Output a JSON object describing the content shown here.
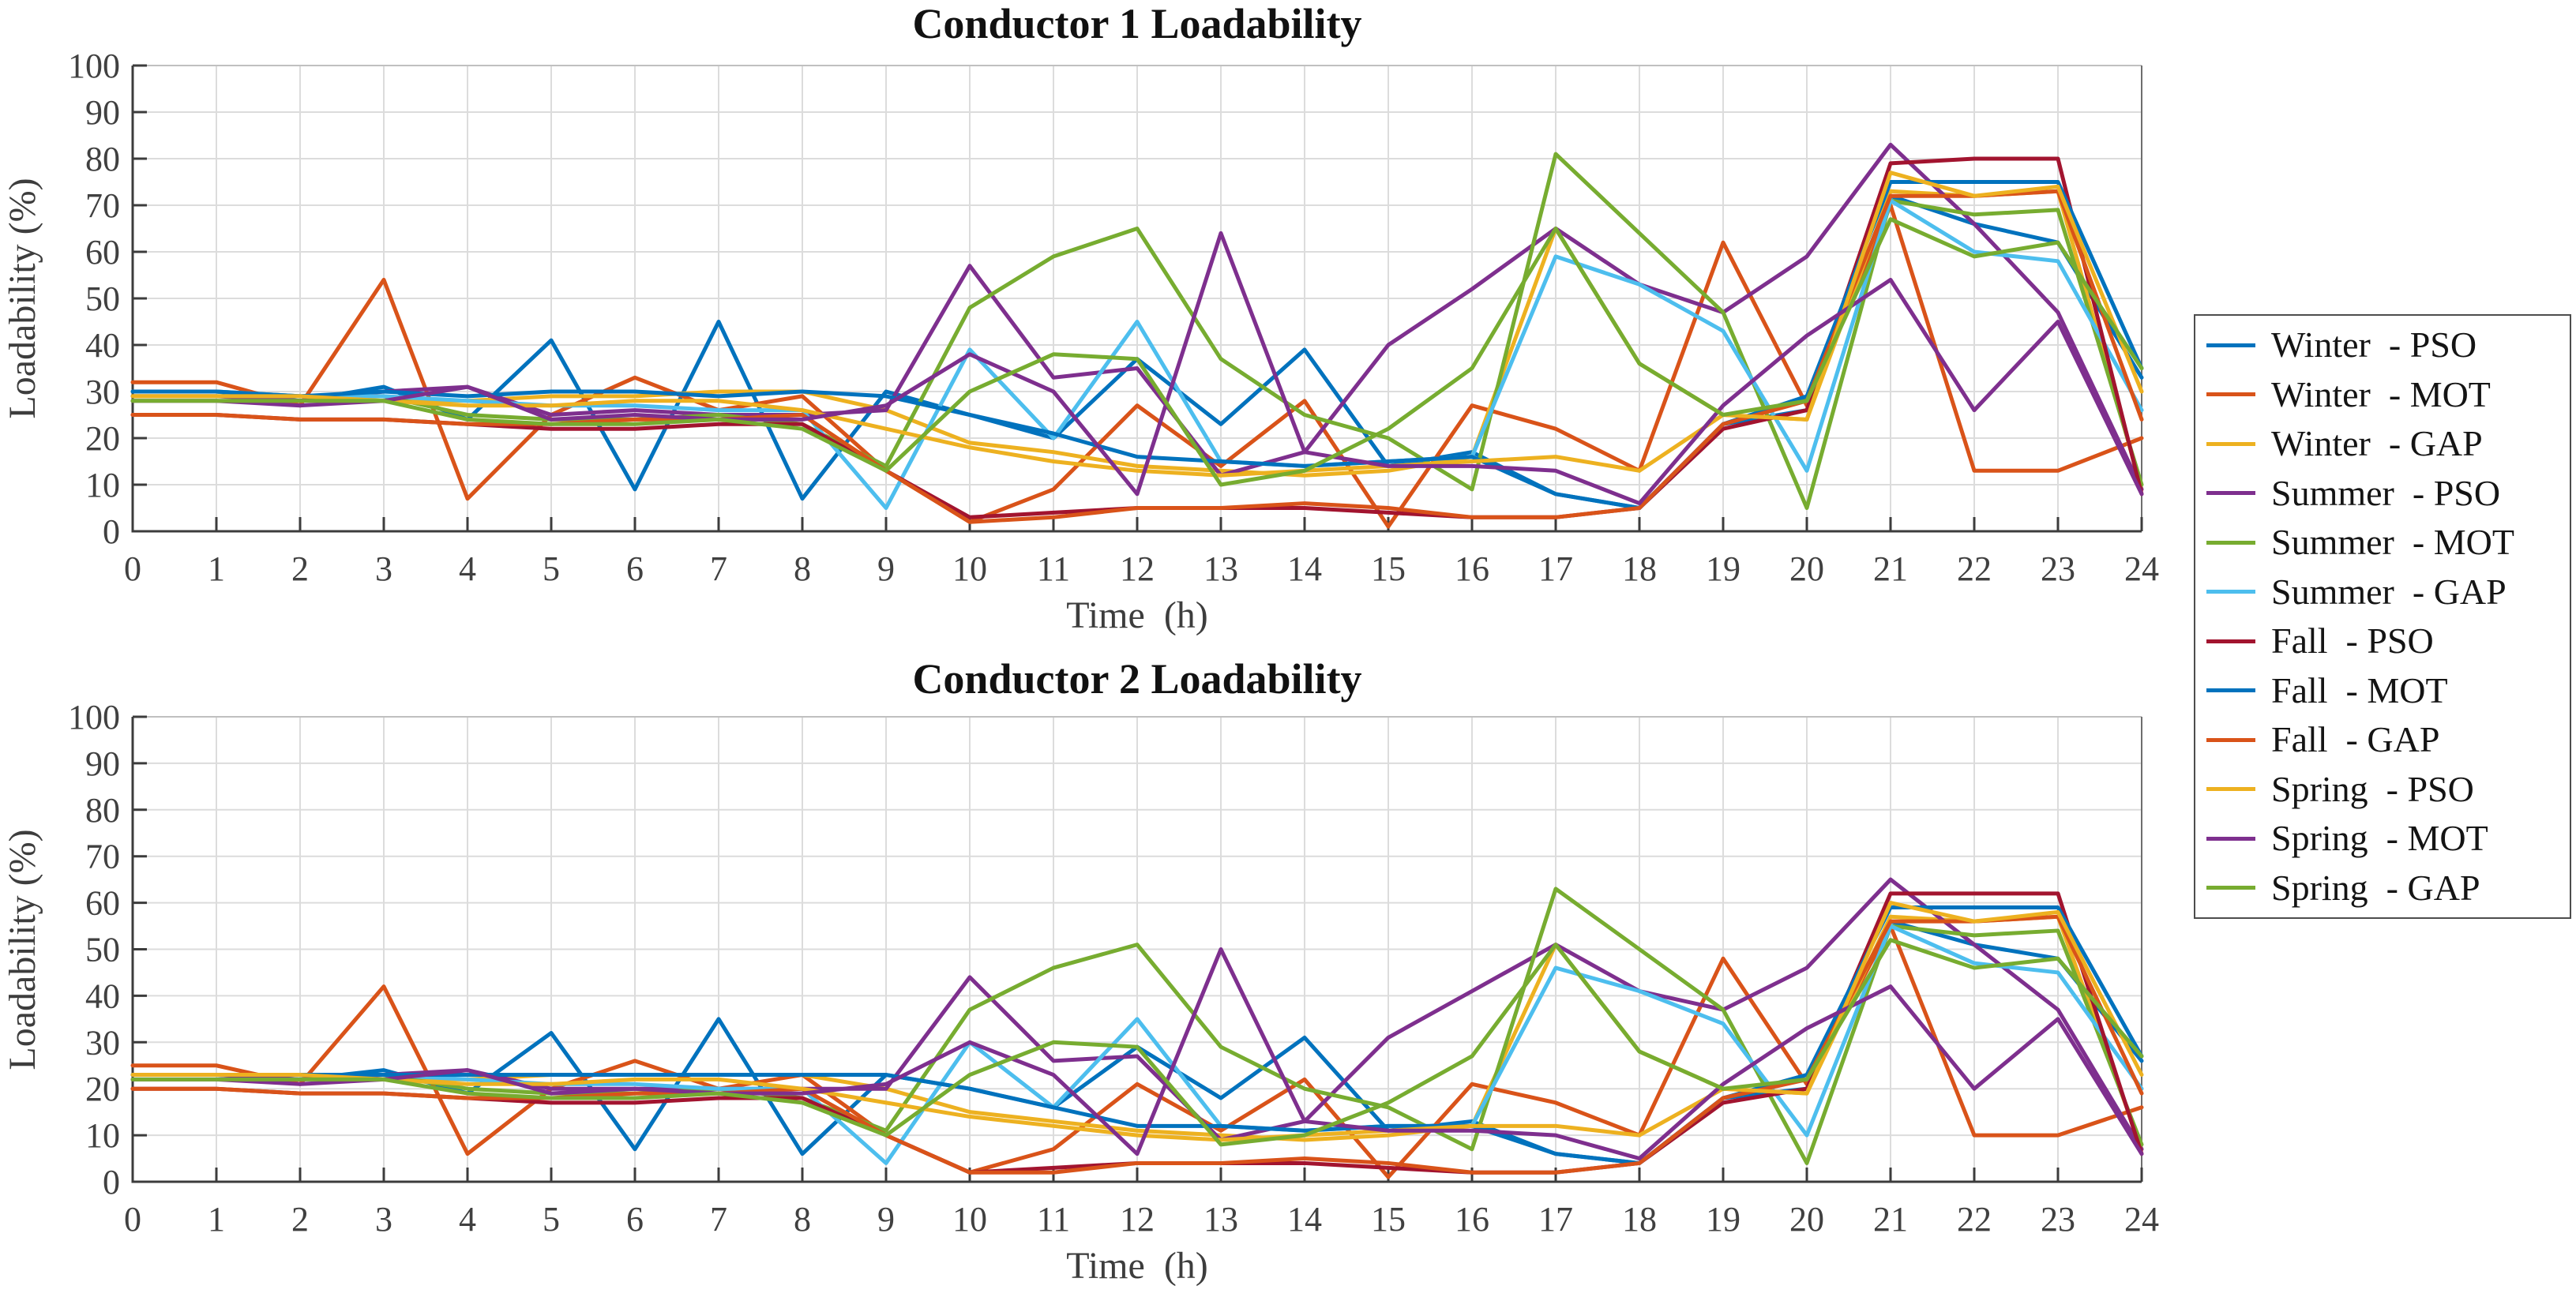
{
  "figure": {
    "background": "#ffffff"
  },
  "legend": {
    "position": "right",
    "entries": [
      {
        "label": "Winter  - PSO",
        "color": "#0072BD"
      },
      {
        "label": "Winter  - MOT",
        "color": "#D95319"
      },
      {
        "label": "Winter  - GAP",
        "color": "#EDB120"
      },
      {
        "label": "Summer  - PSO",
        "color": "#7E2F8E"
      },
      {
        "label": "Summer  - MOT",
        "color": "#77AC30"
      },
      {
        "label": "Summer  - GAP",
        "color": "#4DBEEE"
      },
      {
        "label": "Fall  - PSO",
        "color": "#A2142F"
      },
      {
        "label": "Fall  - MOT",
        "color": "#0072BD"
      },
      {
        "label": "Fall  - GAP",
        "color": "#D95319"
      },
      {
        "label": "Spring  - PSO",
        "color": "#EDB120"
      },
      {
        "label": "Spring  - MOT",
        "color": "#7E2F8E"
      },
      {
        "label": "Spring  - GAP",
        "color": "#77AC30"
      }
    ]
  },
  "chart_data": [
    {
      "type": "line",
      "title": "Conductor 1 Loadability",
      "xlabel": "Time  (h)",
      "ylabel": "Loadability (%)",
      "xlim": [
        0,
        24
      ],
      "ylim": [
        0,
        100
      ],
      "xticks": [
        0,
        1,
        2,
        3,
        4,
        5,
        6,
        7,
        8,
        9,
        10,
        11,
        12,
        13,
        14,
        15,
        16,
        17,
        18,
        19,
        20,
        21,
        22,
        23,
        24
      ],
      "yticks": [
        0,
        10,
        20,
        30,
        40,
        50,
        60,
        70,
        80,
        90,
        100
      ],
      "grid": true,
      "x": [
        0,
        1,
        2,
        3,
        4,
        5,
        6,
        7,
        8,
        9,
        10,
        11,
        12,
        13,
        14,
        15,
        16,
        17,
        18,
        19,
        20,
        21,
        22,
        23,
        24
      ],
      "series": [
        {
          "name": "winter-pso",
          "label": "Winter  - PSO",
          "color": "#0072BD",
          "values": [
            30,
            30,
            28,
            31,
            24,
            41,
            9,
            45,
            7,
            30,
            25,
            20,
            37,
            23,
            39,
            14,
            17,
            8,
            5,
            23,
            26,
            72,
            66,
            62,
            33
          ]
        },
        {
          "name": "winter-mot",
          "label": "Winter  - MOT",
          "color": "#D95319",
          "values": [
            32,
            32,
            27,
            54,
            7,
            25,
            33,
            26,
            29,
            13,
            2,
            9,
            27,
            14,
            28,
            1,
            27,
            22,
            13,
            62,
            27,
            70,
            13,
            13,
            20
          ]
        },
        {
          "name": "winter-gap",
          "label": "Winter  - GAP",
          "color": "#EDB120",
          "values": [
            30,
            30,
            29,
            28,
            28,
            29,
            29,
            30,
            30,
            26,
            19,
            17,
            14,
            13,
            12,
            13,
            16,
            65,
            36,
            25,
            24,
            73,
            72,
            73,
            9
          ]
        },
        {
          "name": "summer-pso",
          "label": "Summer  - PSO",
          "color": "#7E2F8E",
          "values": [
            29,
            29,
            28,
            30,
            31,
            25,
            26,
            25,
            25,
            26,
            57,
            33,
            35,
            12,
            17,
            40,
            52,
            65,
            53,
            47,
            59,
            83,
            66,
            47,
            9
          ]
        },
        {
          "name": "summer-mot",
          "label": "Summer  - MOT",
          "color": "#77AC30",
          "values": [
            29,
            29,
            29,
            29,
            25,
            24,
            24,
            25,
            23,
            14,
            48,
            59,
            65,
            37,
            25,
            20,
            9,
            81,
            64,
            47,
            5,
            71,
            68,
            69,
            10
          ]
        },
        {
          "name": "summer-gap",
          "label": "Summer  - GAP",
          "color": "#4DBEEE",
          "values": [
            30,
            30,
            29,
            29,
            28,
            27,
            27,
            26,
            26,
            5,
            39,
            20,
            45,
            15,
            14,
            15,
            16,
            59,
            53,
            43,
            13,
            71,
            60,
            58,
            26
          ]
        },
        {
          "name": "fall-pso",
          "label": "Fall  - PSO",
          "color": "#A2142F",
          "values": [
            25,
            25,
            24,
            24,
            23,
            22,
            22,
            23,
            23,
            13,
            3,
            4,
            5,
            5,
            5,
            4,
            3,
            3,
            5,
            22,
            26,
            79,
            80,
            80,
            8
          ]
        },
        {
          "name": "fall-mot",
          "label": "Fall  - MOT",
          "color": "#0072BD",
          "values": [
            30,
            30,
            29,
            30,
            29,
            30,
            30,
            29,
            30,
            29,
            25,
            21,
            16,
            15,
            14,
            15,
            16,
            8,
            5,
            23,
            29,
            75,
            75,
            75,
            35
          ]
        },
        {
          "name": "fall-gap",
          "label": "Fall  - GAP",
          "color": "#D95319",
          "values": [
            25,
            25,
            24,
            24,
            23,
            23,
            24,
            24,
            25,
            13,
            2,
            3,
            5,
            5,
            6,
            5,
            3,
            3,
            5,
            23,
            28,
            72,
            72,
            73,
            24
          ]
        },
        {
          "name": "spring-pso",
          "label": "Spring  - PSO",
          "color": "#EDB120",
          "values": [
            29,
            29,
            29,
            28,
            27,
            27,
            28,
            28,
            26,
            22,
            18,
            15,
            13,
            12,
            13,
            14,
            15,
            16,
            13,
            25,
            24,
            77,
            72,
            74,
            30
          ]
        },
        {
          "name": "spring-mot",
          "label": "Spring  - MOT",
          "color": "#7E2F8E",
          "values": [
            28,
            28,
            27,
            28,
            31,
            24,
            25,
            24,
            24,
            27,
            38,
            30,
            8,
            64,
            17,
            14,
            14,
            13,
            6,
            27,
            42,
            54,
            26,
            45,
            8
          ]
        },
        {
          "name": "spring-gap",
          "label": "Spring  - GAP",
          "color": "#77AC30",
          "values": [
            28,
            28,
            28,
            28,
            24,
            23,
            23,
            24,
            22,
            13,
            30,
            38,
            37,
            10,
            13,
            22,
            35,
            65,
            36,
            25,
            28,
            67,
            59,
            62,
            35
          ]
        }
      ]
    },
    {
      "type": "line",
      "title": "Conductor 2 Loadability",
      "xlabel": "Time  (h)",
      "ylabel": "Loadability (%)",
      "xlim": [
        0,
        24
      ],
      "ylim": [
        0,
        100
      ],
      "xticks": [
        0,
        1,
        2,
        3,
        4,
        5,
        6,
        7,
        8,
        9,
        10,
        11,
        12,
        13,
        14,
        15,
        16,
        17,
        18,
        19,
        20,
        21,
        22,
        23,
        24
      ],
      "yticks": [
        0,
        10,
        20,
        30,
        40,
        50,
        60,
        70,
        80,
        90,
        100
      ],
      "grid": true,
      "x": [
        0,
        1,
        2,
        3,
        4,
        5,
        6,
        7,
        8,
        9,
        10,
        11,
        12,
        13,
        14,
        15,
        16,
        17,
        18,
        19,
        20,
        21,
        22,
        23,
        24
      ],
      "series": [
        {
          "name": "winter-pso",
          "label": "Winter  - PSO",
          "color": "#0072BD",
          "values": [
            23,
            23,
            22,
            24,
            19,
            32,
            7,
            35,
            6,
            23,
            20,
            16,
            29,
            18,
            31,
            11,
            13,
            6,
            4,
            18,
            20,
            56,
            51,
            48,
            26
          ]
        },
        {
          "name": "winter-mot",
          "label": "Winter  - MOT",
          "color": "#D95319",
          "values": [
            25,
            25,
            21,
            42,
            6,
            20,
            26,
            20,
            23,
            10,
            2,
            7,
            21,
            11,
            22,
            1,
            21,
            17,
            10,
            48,
            21,
            55,
            10,
            10,
            16
          ]
        },
        {
          "name": "winter-gap",
          "label": "Winter  - GAP",
          "color": "#EDB120",
          "values": [
            23,
            23,
            23,
            22,
            22,
            23,
            23,
            23,
            23,
            20,
            15,
            13,
            11,
            10,
            9,
            10,
            12,
            51,
            28,
            20,
            19,
            57,
            56,
            57,
            7
          ]
        },
        {
          "name": "summer-pso",
          "label": "Summer  - PSO",
          "color": "#7E2F8E",
          "values": [
            23,
            23,
            22,
            23,
            24,
            20,
            20,
            20,
            20,
            20,
            44,
            26,
            27,
            9,
            13,
            31,
            41,
            51,
            41,
            37,
            46,
            65,
            51,
            37,
            7
          ]
        },
        {
          "name": "summer-mot",
          "label": "Summer  - MOT",
          "color": "#77AC30",
          "values": [
            23,
            23,
            23,
            23,
            20,
            19,
            19,
            20,
            18,
            11,
            37,
            46,
            51,
            29,
            20,
            16,
            7,
            63,
            50,
            37,
            4,
            55,
            53,
            54,
            8
          ]
        },
        {
          "name": "summer-gap",
          "label": "Summer  - GAP",
          "color": "#4DBEEE",
          "values": [
            23,
            23,
            23,
            23,
            22,
            21,
            21,
            20,
            20,
            4,
            30,
            16,
            35,
            12,
            11,
            12,
            12,
            46,
            41,
            34,
            10,
            55,
            47,
            45,
            20
          ]
        },
        {
          "name": "fall-pso",
          "label": "Fall  - PSO",
          "color": "#A2142F",
          "values": [
            20,
            20,
            19,
            19,
            18,
            17,
            17,
            18,
            18,
            10,
            2,
            3,
            4,
            4,
            4,
            3,
            2,
            2,
            4,
            17,
            20,
            62,
            62,
            62,
            6
          ]
        },
        {
          "name": "fall-mot",
          "label": "Fall  - MOT",
          "color": "#0072BD",
          "values": [
            23,
            23,
            23,
            23,
            23,
            23,
            23,
            23,
            23,
            23,
            20,
            16,
            12,
            12,
            11,
            12,
            12,
            6,
            4,
            18,
            23,
            59,
            59,
            59,
            27
          ]
        },
        {
          "name": "fall-gap",
          "label": "Fall  - GAP",
          "color": "#D95319",
          "values": [
            20,
            20,
            19,
            19,
            18,
            18,
            19,
            19,
            20,
            10,
            2,
            2,
            4,
            4,
            5,
            4,
            2,
            2,
            4,
            18,
            22,
            56,
            56,
            57,
            19
          ]
        },
        {
          "name": "spring-pso",
          "label": "Spring  - PSO",
          "color": "#EDB120",
          "values": [
            23,
            23,
            23,
            22,
            21,
            21,
            22,
            22,
            20,
            17,
            14,
            12,
            10,
            9,
            10,
            11,
            12,
            12,
            10,
            20,
            19,
            60,
            56,
            58,
            23
          ]
        },
        {
          "name": "spring-mot",
          "label": "Spring  - MOT",
          "color": "#7E2F8E",
          "values": [
            22,
            22,
            21,
            22,
            24,
            19,
            20,
            19,
            19,
            21,
            30,
            23,
            6,
            50,
            13,
            11,
            11,
            10,
            5,
            21,
            33,
            42,
            20,
            35,
            6
          ]
        },
        {
          "name": "spring-gap",
          "label": "Spring  - GAP",
          "color": "#77AC30",
          "values": [
            22,
            22,
            22,
            22,
            19,
            18,
            18,
            19,
            17,
            10,
            23,
            30,
            29,
            8,
            10,
            17,
            27,
            51,
            28,
            20,
            22,
            52,
            46,
            48,
            27
          ]
        }
      ]
    }
  ]
}
